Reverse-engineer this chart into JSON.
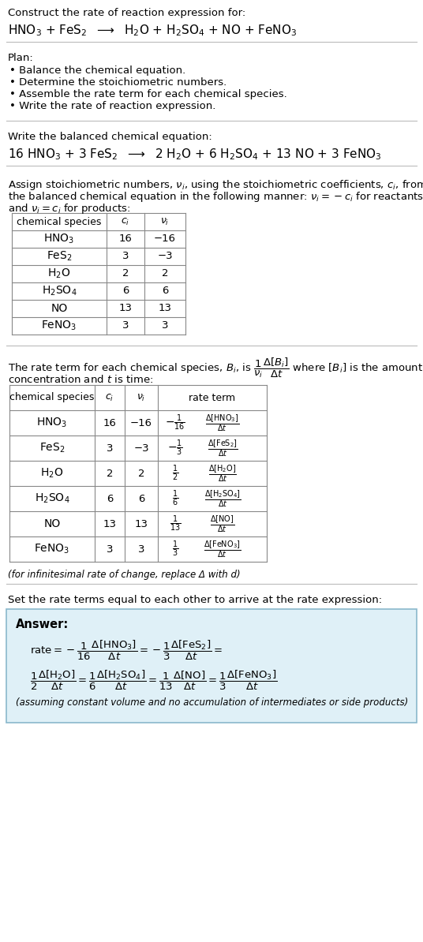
{
  "title_line1": "Construct the rate of reaction expression for:",
  "plan_header": "Plan:",
  "plan_items": [
    "• Balance the chemical equation.",
    "• Determine the stoichiometric numbers.",
    "• Assemble the rate term for each chemical species.",
    "• Write the rate of reaction expression."
  ],
  "balanced_header": "Write the balanced chemical equation:",
  "table1_headers": [
    "chemical species",
    "c_i",
    "v_i"
  ],
  "table1_rows": [
    [
      "HNO_3",
      "16",
      "-16"
    ],
    [
      "FeS_2",
      "3",
      "-3"
    ],
    [
      "H_2O",
      "2",
      "2"
    ],
    [
      "H_2SO_4",
      "6",
      "6"
    ],
    [
      "NO",
      "13",
      "13"
    ],
    [
      "FeNO_3",
      "3",
      "3"
    ]
  ],
  "table2_headers": [
    "chemical species",
    "c_i",
    "v_i",
    "rate term"
  ],
  "infinitesimal_note": "(for infinitesimal rate of change, replace Δ with d)",
  "set_equal_text": "Set the rate terms equal to each other to arrive at the rate expression:",
  "answer_box_color": "#dff0f7",
  "answer_border_color": "#8ab8cc",
  "answer_label": "Answer:",
  "answer_note": "(assuming constant volume and no accumulation of intermediates or side products)",
  "bg_color": "#ffffff",
  "text_color": "#000000",
  "table_border_color": "#888888",
  "separator_color": "#bbbbbb",
  "species_math": {
    "HNO_3": "$\\mathregular{HNO_3}$",
    "FeS_2": "$\\mathregular{FeS_2}$",
    "H_2O": "$\\mathregular{H_2O}$",
    "H_2SO_4": "$\\mathregular{H_2SO_4}$",
    "NO": "NO",
    "FeNO_3": "$\\mathregular{FeNO_3}$"
  },
  "ci_list": [
    "16",
    "3",
    "2",
    "6",
    "13",
    "3"
  ],
  "ni_list": [
    "−16",
    "−3",
    "2",
    "6",
    "13",
    "3"
  ]
}
